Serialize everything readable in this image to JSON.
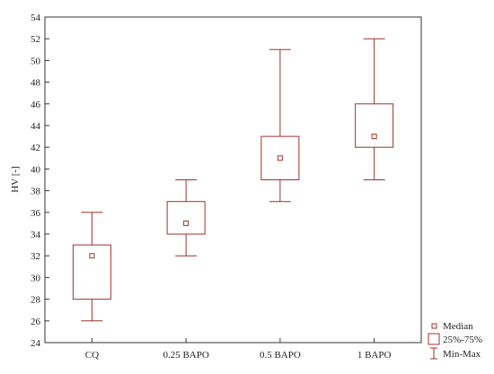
{
  "chart_data": {
    "type": "boxplot",
    "ylabel": "HV [-]",
    "ylim": [
      24,
      54
    ],
    "yticks": [
      24,
      26,
      28,
      30,
      32,
      34,
      36,
      38,
      40,
      42,
      44,
      46,
      48,
      50,
      52,
      54
    ],
    "grid": false,
    "categories": [
      "CQ",
      "0.25 BAPO",
      "0.5 BAPO",
      "1 BAPO"
    ],
    "boxes": [
      {
        "category": "CQ",
        "min": 26,
        "q1": 28,
        "median": 32,
        "q3": 33,
        "max": 36
      },
      {
        "category": "0.25 BAPO",
        "min": 32,
        "q1": 34,
        "median": 35,
        "q3": 37,
        "max": 39
      },
      {
        "category": "0.5 BAPO",
        "min": 37,
        "q1": 39,
        "median": 41,
        "q3": 43,
        "max": 51
      },
      {
        "category": "1 BAPO",
        "min": 39,
        "q1": 42,
        "median": 43,
        "q3": 46,
        "max": 52
      }
    ],
    "legend": {
      "placement": "bottom-right",
      "entries": [
        "Median",
        "25%-75%",
        "Min-Max"
      ]
    },
    "colors": {
      "series": "#a0302f",
      "axis": "#333333"
    }
  }
}
